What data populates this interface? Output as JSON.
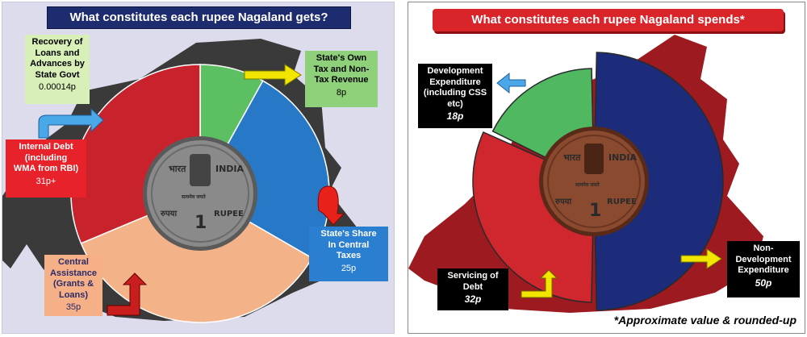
{
  "colors": {
    "left_bg": "#dcdcec",
    "left_title_bg": "#1d2c6e",
    "right_title_bg": "#d9242a",
    "map": "#3a3a3a",
    "map_right": "#9c1a20",
    "green": "#5cbf62",
    "blue": "#2779c8",
    "peach": "#f4b288",
    "red": "#c8232d",
    "navy": "#1d2c7a",
    "coin_left": "#8a8a8a",
    "coin_right": "#8a4a30"
  },
  "chart_data": [
    {
      "type": "pie",
      "title": "What constitutes each rupee Nagaland gets?",
      "slices": [
        {
          "key": "green",
          "label_lines": [
            "State's Own",
            "Tax and Non-",
            "Tax Revenue"
          ],
          "value_label": "8p",
          "value": 8,
          "color": "#5cbf62"
        },
        {
          "key": "blue",
          "label_lines": [
            "State's Share",
            "In Central",
            "Taxes"
          ],
          "value_label": "25p",
          "value": 25,
          "color": "#2779c8"
        },
        {
          "key": "peach",
          "label_lines": [
            "Central",
            "Assistance",
            "(Grants &",
            "Loans)"
          ],
          "value_label": "35p",
          "value": 35,
          "color": "#f4b288"
        },
        {
          "key": "red",
          "label_lines": [
            "Internal Debt",
            "(including",
            "WMA from RBI)"
          ],
          "value_label": "31p+",
          "value": 31,
          "color": "#c8232d"
        },
        {
          "key": "tiny",
          "label_lines": [
            "Recovery of",
            "Loans and",
            "Advances by",
            "State Govt"
          ],
          "value_label": "0.00014p",
          "value": 0.00014,
          "color": "#e8e8b0"
        }
      ]
    },
    {
      "type": "pie",
      "title": "What constitutes each rupee Nagaland spends*",
      "slices": [
        {
          "key": "navy",
          "label_lines": [
            "Non-",
            "Development",
            "Expenditure"
          ],
          "value_label": "50p",
          "value": 50,
          "color": "#1d2c7a"
        },
        {
          "key": "red",
          "label_lines": [
            "Servicing of",
            "Debt"
          ],
          "value_label": "32p",
          "value": 32,
          "color": "#d0262e"
        },
        {
          "key": "green",
          "label_lines": [
            "Development",
            "Expenditure",
            "(including CSS",
            "etc)"
          ],
          "value_label": "18p",
          "value": 18,
          "color": "#4fb860"
        }
      ],
      "footnote": "*Approximate value & rounded-up"
    }
  ],
  "coin": {
    "left_script": "भारत",
    "right_script": "INDIA",
    "motto": "सत्यमेव जयते",
    "denomination": "1",
    "left_word": "रुपया",
    "right_word": "RUPEE"
  }
}
